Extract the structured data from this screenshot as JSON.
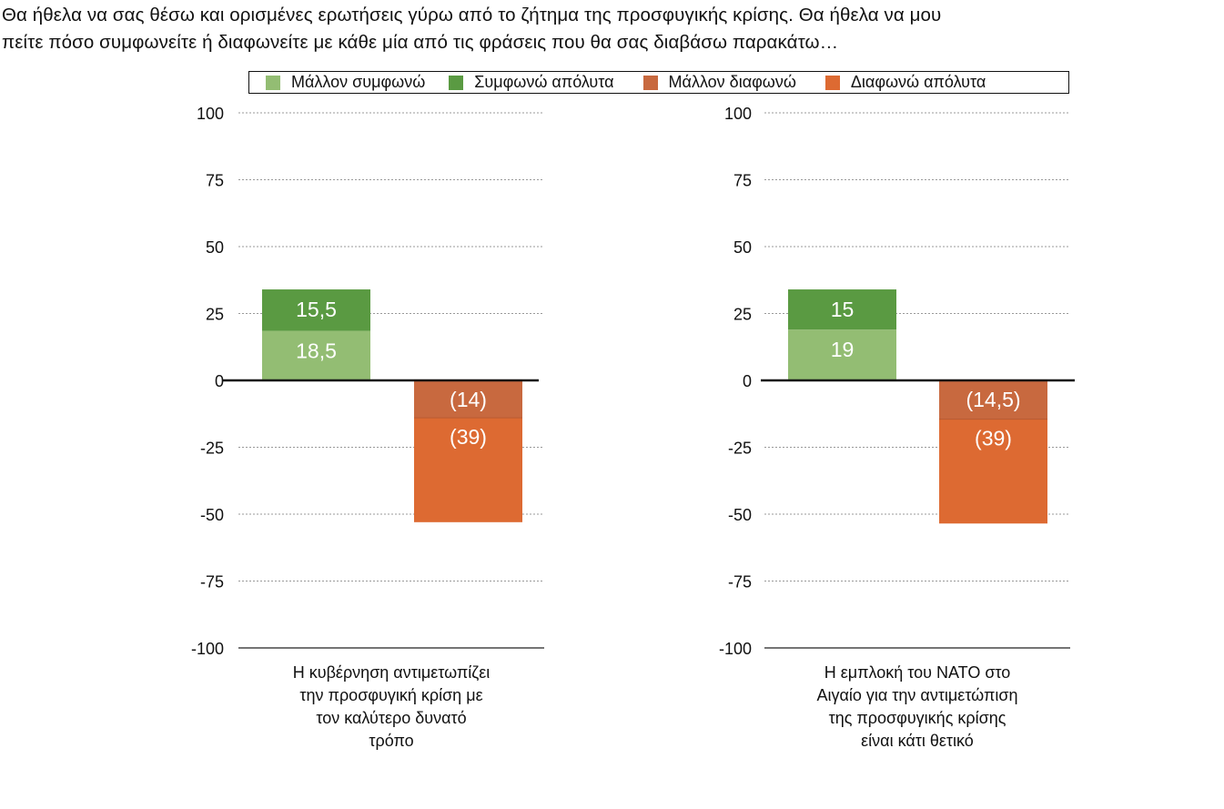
{
  "title_lines": [
    "Θα ήθελα να σας θέσω και ορισμένες ερωτήσεις γύρω από το ζήτημα της προσφυγικής κρίσης. Θα ήθελα να μου",
    "πείτε πόσο συμφωνείτε ή διαφωνείτε με κάθε μία από τις φράσεις που θα σας διαβάσω παρακάτω…"
  ],
  "legend": [
    {
      "label": "Μάλλον συμφωνώ",
      "color": "#93bd73"
    },
    {
      "label": "Συμφωνώ απόλυτα",
      "color": "#5a9a42"
    },
    {
      "label": "Μάλλον διαφωνώ",
      "color": "#c8693f"
    },
    {
      "label": "Διαφωνώ απόλυτα",
      "color": "#dd6a32"
    }
  ],
  "chart_data": [
    {
      "type": "bar",
      "stacked": true,
      "category_label": [
        "Η κυβέρνηση αντιμετωπίζει",
        "την προσφυγική κρίση με",
        "τον καλύτερο δυνατό",
        "τρόπο"
      ],
      "ylim": [
        -100,
        100
      ],
      "yticks": [
        "100",
        "75",
        "50",
        "25",
        "0",
        "-25",
        "-50",
        "-75",
        "-100"
      ],
      "agree_bar": [
        {
          "series": "Μάλλον συμφωνώ",
          "value": 18.5,
          "label": "18,5",
          "color": "#93bd73"
        },
        {
          "series": "Συμφωνώ απόλυτα",
          "value": 15.5,
          "label": "15,5",
          "color": "#5a9a42"
        }
      ],
      "disagree_bar": [
        {
          "series": "Μάλλον διαφωνώ",
          "value": -14,
          "label": "(14)",
          "color": "#c8693f"
        },
        {
          "series": "Διαφωνώ απόλυτα",
          "value": -39,
          "label": "(39)",
          "color": "#dd6a32"
        }
      ]
    },
    {
      "type": "bar",
      "stacked": true,
      "category_label": [
        "Η εμπλοκή του ΝΑΤΟ στο",
        "Αιγαίο για την αντιμετώπιση",
        "της προσφυγικής κρίσης",
        "είναι κάτι θετικό"
      ],
      "ylim": [
        -100,
        100
      ],
      "yticks": [
        "100",
        "75",
        "50",
        "25",
        "0",
        "-25",
        "-50",
        "-75",
        "-100"
      ],
      "agree_bar": [
        {
          "series": "Μάλλον συμφωνώ",
          "value": 19,
          "label": "19",
          "color": "#93bd73"
        },
        {
          "series": "Συμφωνώ απόλυτα",
          "value": 15,
          "label": "15",
          "color": "#5a9a42"
        }
      ],
      "disagree_bar": [
        {
          "series": "Μάλλον διαφωνώ",
          "value": -14.5,
          "label": "(14,5)",
          "color": "#c8693f"
        },
        {
          "series": "Διαφωνώ απόλυτα",
          "value": -39,
          "label": "(39)",
          "color": "#dd6a32"
        }
      ]
    }
  ]
}
